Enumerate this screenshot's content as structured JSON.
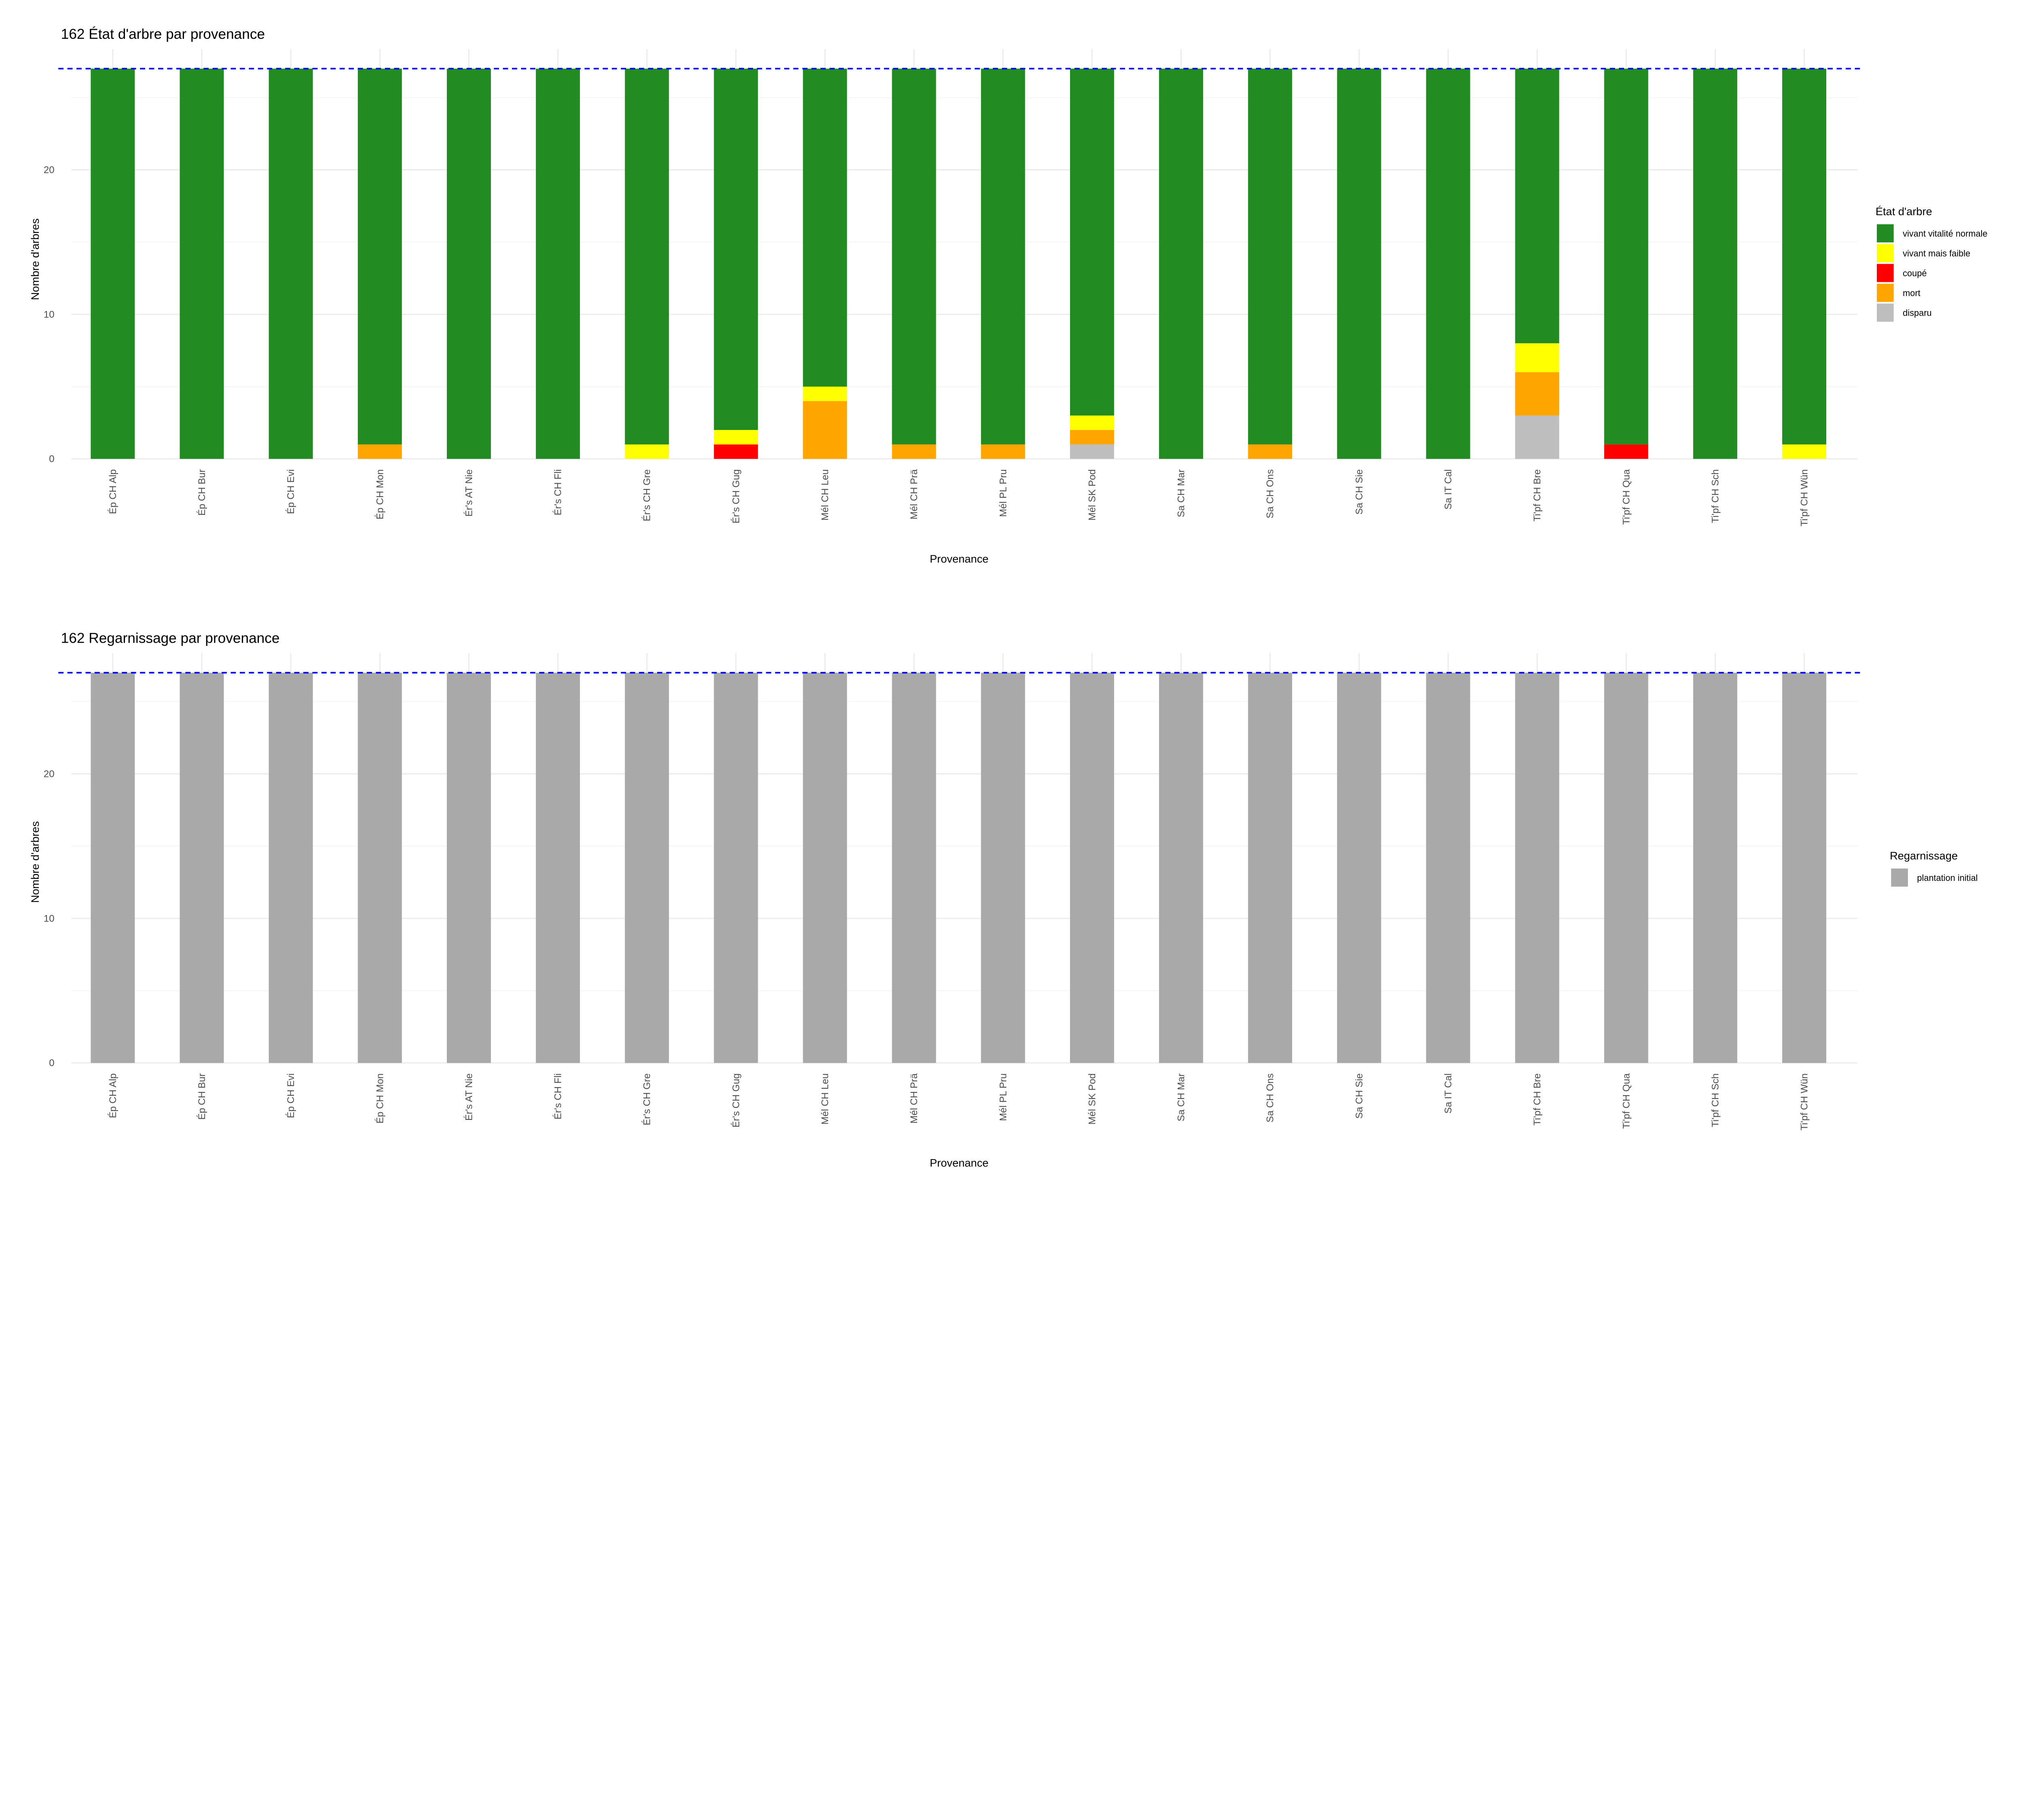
{
  "chart_data": [
    {
      "type": "bar",
      "stacked": true,
      "title": "162 État d'arbre par provenance",
      "xlabel": "Provenance",
      "ylabel": "Nombre d'arbres",
      "ylim": [
        0,
        28.35
      ],
      "yticks": [
        0,
        10,
        20
      ],
      "grid": true,
      "legend_position": "right",
      "legend_title": "État d'arbre",
      "reference_line": {
        "y": 27,
        "style": "dashed",
        "color": "#0000FF"
      },
      "categories": [
        "Ép CH Alp",
        "Ép CH Bur",
        "Ép CH Evi",
        "Ép CH Mon",
        "Ér's AT Nie",
        "Ér's CH Fli",
        "Ér's CH Gre",
        "Ér's CH Gug",
        "Mél CH Leu",
        "Mél CH Prä",
        "Mél PL Pru",
        "Mél SK Pod",
        "Sa CH Mar",
        "Sa CH Ons",
        "Sa CH Sie",
        "Sa IT Cal",
        "Ti'pf CH Bre",
        "Ti'pf CH Qua",
        "Ti'pf CH Sch",
        "Ti'pf CH Wün"
      ],
      "series": [
        {
          "name": "vivant vitalité normale",
          "color": "#228B22",
          "values": [
            27,
            27,
            27,
            26,
            27,
            27,
            26,
            25,
            22,
            26,
            26,
            24,
            27,
            26,
            27,
            27,
            19,
            26,
            27,
            26
          ]
        },
        {
          "name": "vivant mais faible",
          "color": "#FFFF00",
          "values": [
            0,
            0,
            0,
            0,
            0,
            0,
            1,
            1,
            1,
            0,
            0,
            1,
            0,
            0,
            0,
            0,
            2,
            0,
            0,
            1
          ]
        },
        {
          "name": "coupé",
          "color": "#FF0000",
          "values": [
            0,
            0,
            0,
            0,
            0,
            0,
            0,
            1,
            0,
            0,
            0,
            0,
            0,
            0,
            0,
            0,
            0,
            1,
            0,
            0
          ]
        },
        {
          "name": "mort",
          "color": "#FFA500",
          "values": [
            0,
            0,
            0,
            1,
            0,
            0,
            0,
            0,
            4,
            1,
            1,
            1,
            0,
            1,
            0,
            0,
            3,
            0,
            0,
            0
          ]
        },
        {
          "name": "disparu",
          "color": "#BEBEBE",
          "values": [
            0,
            0,
            0,
            0,
            0,
            0,
            0,
            0,
            0,
            0,
            0,
            1,
            0,
            0,
            0,
            0,
            3,
            0,
            0,
            0
          ]
        }
      ]
    },
    {
      "type": "bar",
      "stacked": true,
      "title": "162 Regarnissage par provenance",
      "xlabel": "Provenance",
      "ylabel": "Nombre d'arbres",
      "ylim": [
        0,
        28.35
      ],
      "yticks": [
        0,
        10,
        20
      ],
      "grid": true,
      "legend_position": "right",
      "legend_title": "Regarnissage",
      "reference_line": {
        "y": 27,
        "style": "dashed",
        "color": "#0000FF"
      },
      "categories": [
        "Ép CH Alp",
        "Ép CH Bur",
        "Ép CH Evi",
        "Ép CH Mon",
        "Ér's AT Nie",
        "Ér's CH Fli",
        "Ér's CH Gre",
        "Ér's CH Gug",
        "Mél CH Leu",
        "Mél CH Prä",
        "Mél PL Pru",
        "Mél SK Pod",
        "Sa CH Mar",
        "Sa CH Ons",
        "Sa CH Sie",
        "Sa IT Cal",
        "Ti'pf CH Bre",
        "Ti'pf CH Qua",
        "Ti'pf CH Sch",
        "Ti'pf CH Wün"
      ],
      "series": [
        {
          "name": "plantation initial",
          "color": "#A9A9A9",
          "values": [
            27,
            27,
            27,
            27,
            27,
            27,
            27,
            27,
            27,
            27,
            27,
            27,
            27,
            27,
            27,
            27,
            27,
            27,
            27,
            27
          ]
        }
      ]
    }
  ]
}
